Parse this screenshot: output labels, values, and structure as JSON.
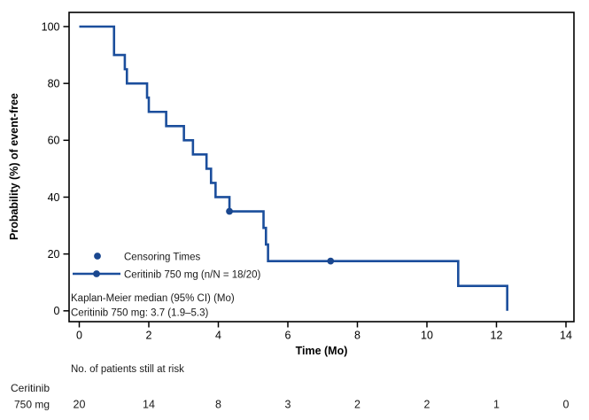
{
  "colors": {
    "curve": "#1b4e9c",
    "marker": "#1a478f",
    "axis": "#000000",
    "background": "#ffffff",
    "text": "#000000"
  },
  "chart_data": {
    "type": "line",
    "subtype": "kaplan-meier-step",
    "title": "",
    "xlabel": "Time (Mo)",
    "ylabel": "Probability (%) of event-free",
    "xlim": [
      0,
      14
    ],
    "ylim": [
      0,
      100
    ],
    "x_ticks": [
      0,
      2,
      4,
      6,
      8,
      10,
      12,
      14
    ],
    "y_ticks": [
      0,
      20,
      40,
      60,
      80,
      100
    ],
    "grid": false,
    "legend": {
      "position": "inside-lower-left",
      "entries": [
        {
          "marker": "dot",
          "label": "Censoring Times"
        },
        {
          "marker": "line-dot",
          "label": "Ceritinib 750 mg (n/N = 18/20)"
        }
      ]
    },
    "series": [
      {
        "name": "Ceritinib 750 mg (n/N = 18/20)",
        "steps": [
          [
            0,
            100
          ],
          [
            1.0,
            90
          ],
          [
            1.31,
            85
          ],
          [
            1.37,
            80
          ],
          [
            1.95,
            75
          ],
          [
            2.0,
            70
          ],
          [
            2.5,
            65
          ],
          [
            3.01,
            60
          ],
          [
            3.27,
            55
          ],
          [
            3.66,
            50
          ],
          [
            3.79,
            45
          ],
          [
            3.92,
            40
          ],
          [
            4.32,
            35
          ],
          [
            5.3,
            29.17
          ],
          [
            5.37,
            23.33
          ],
          [
            5.43,
            17.5
          ],
          [
            10.9,
            8.75
          ],
          [
            12.31,
            0
          ]
        ],
        "censor_times": [
          [
            4.32,
            35
          ],
          [
            7.23,
            17.5
          ]
        ]
      }
    ],
    "annotations": [
      "Kaplan-Meier median (95% CI) (Mo)",
      "Ceritinib 750 mg: 3.7 (1.9–5.3)"
    ],
    "at_risk_table": {
      "header": "No. of patients still at risk",
      "row_label_lines": [
        "Ceritinib",
        "750 mg"
      ],
      "times": [
        0,
        2,
        4,
        6,
        8,
        10,
        12,
        14
      ],
      "counts": [
        20,
        14,
        8,
        3,
        2,
        2,
        1,
        0
      ]
    }
  }
}
